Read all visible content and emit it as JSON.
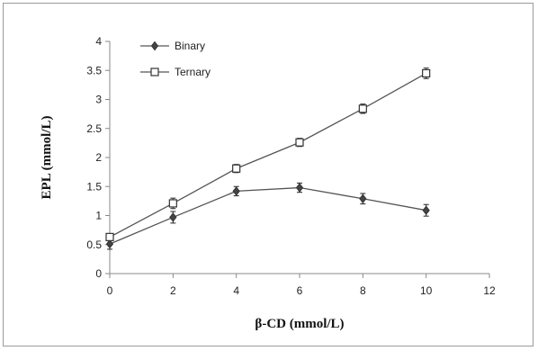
{
  "chart_data": {
    "type": "line",
    "title": "",
    "xlabel": "β-CD (mmol/L)",
    "ylabel": "EPL (mmol/L)",
    "xlim": [
      0,
      12
    ],
    "ylim": [
      0,
      4
    ],
    "xticks": [
      0,
      2,
      4,
      6,
      8,
      10,
      12
    ],
    "yticks": [
      0,
      0.5,
      1,
      1.5,
      2,
      2.5,
      3,
      3.5,
      4
    ],
    "x": [
      0,
      2,
      4,
      6,
      8,
      10
    ],
    "series": [
      {
        "name": "Binary",
        "marker": "diamond",
        "values": [
          0.51,
          0.97,
          1.42,
          1.48,
          1.29,
          1.09
        ],
        "error": [
          0.09,
          0.1,
          0.08,
          0.08,
          0.09,
          0.1
        ]
      },
      {
        "name": "Ternary",
        "marker": "square",
        "values": [
          0.63,
          1.21,
          1.81,
          2.26,
          2.84,
          3.45
        ],
        "error": [
          0.06,
          0.09,
          0.07,
          0.07,
          0.08,
          0.09
        ]
      }
    ],
    "grid": false,
    "error_bars": true,
    "legend_position": "top-left",
    "line_color": "#555555",
    "axis_color": "#888888"
  }
}
